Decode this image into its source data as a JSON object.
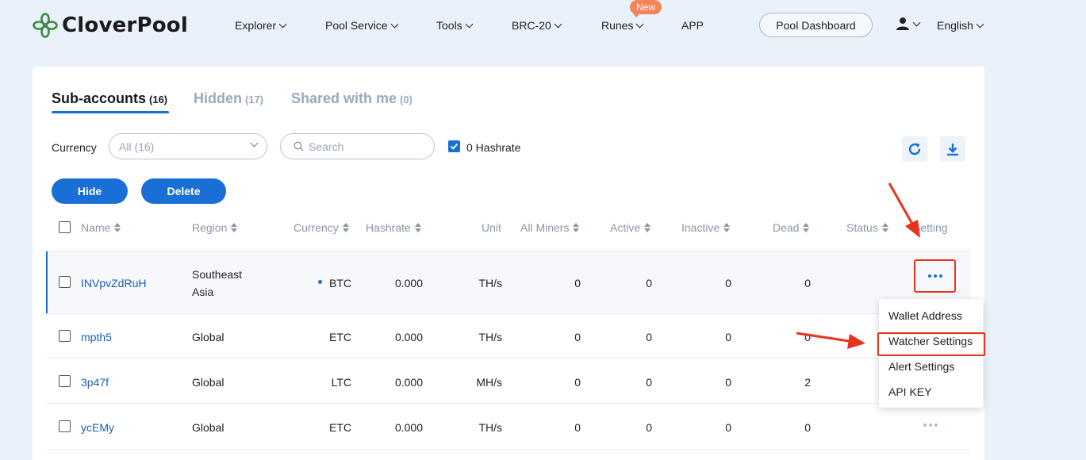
{
  "brand": {
    "name": "CloverPool"
  },
  "nav": {
    "items": [
      {
        "label": "Explorer",
        "dropdown": true
      },
      {
        "label": "Pool Service",
        "dropdown": true
      },
      {
        "label": "Tools",
        "dropdown": true
      },
      {
        "label": "BRC-20",
        "dropdown": true
      },
      {
        "label": "Runes",
        "dropdown": true,
        "badge": "New"
      },
      {
        "label": "APP",
        "dropdown": false
      }
    ],
    "pool_dashboard": "Pool Dashboard",
    "language": "English"
  },
  "tabs": [
    {
      "label": "Sub-accounts",
      "count": "(16)",
      "active": true
    },
    {
      "label": "Hidden",
      "count": "(17)",
      "active": false
    },
    {
      "label": "Shared with me",
      "count": "(0)",
      "active": false
    }
  ],
  "filters": {
    "currency_label": "Currency",
    "currency_value": "All (16)",
    "search_placeholder": "Search",
    "zero_hashrate_label": "0 Hashrate",
    "zero_hashrate_checked": true
  },
  "actions": {
    "hide": "Hide",
    "delete": "Delete"
  },
  "table": {
    "headers": [
      "Name",
      "Region",
      "Currency",
      "Hashrate",
      "Unit",
      "All Miners",
      "Active",
      "Inactive",
      "Dead",
      "Status",
      "Setting"
    ],
    "rows": [
      {
        "name": "INVpvZdRuH",
        "region_line1": "Southeast",
        "region_line2": "Asia",
        "currency": "BTC",
        "hashrate": "0.000",
        "unit": "TH/s",
        "all_miners": "0",
        "active": "0",
        "inactive": "0",
        "dead": "0"
      },
      {
        "name": "mpth5",
        "region_line1": "Global",
        "region_line2": "",
        "currency": "ETC",
        "hashrate": "0.000",
        "unit": "TH/s",
        "all_miners": "0",
        "active": "0",
        "inactive": "0",
        "dead": "0"
      },
      {
        "name": "3p47f",
        "region_line1": "Global",
        "region_line2": "",
        "currency": "LTC",
        "hashrate": "0.000",
        "unit": "MH/s",
        "all_miners": "0",
        "active": "0",
        "inactive": "0",
        "dead": "2"
      },
      {
        "name": "ycEMy",
        "region_line1": "Global",
        "region_line2": "",
        "currency": "ETC",
        "hashrate": "0.000",
        "unit": "TH/s",
        "all_miners": "0",
        "active": "0",
        "inactive": "0",
        "dead": "0"
      }
    ]
  },
  "setting_menu": [
    "Wallet Address",
    "Watcher Settings",
    "Alert Settings",
    "API KEY"
  ],
  "colors": {
    "accent": "#1a6fd6",
    "annotation": "#e8321c",
    "background": "#e9f1fb"
  }
}
